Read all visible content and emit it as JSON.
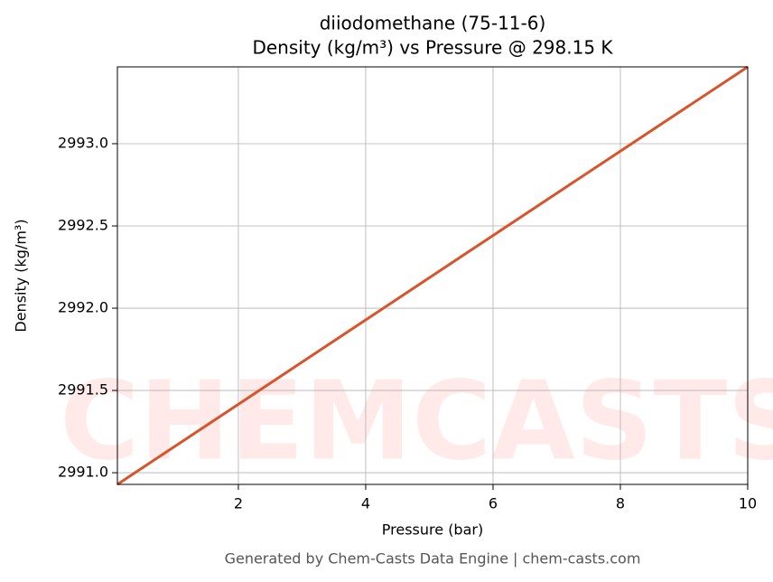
{
  "chart_data": {
    "type": "line",
    "title": "diiodomethane (75-11-6)",
    "subtitle": "Density (kg/m³) vs Pressure @ 298.15 K",
    "x_label": "Pressure (bar)",
    "y_label": "Density (kg/m³)",
    "footer": "Generated by Chem-Casts Data Engine | chem-casts.com",
    "watermark": "CHEMCASTS",
    "x": [
      0.1,
      2,
      4,
      6,
      8,
      10
    ],
    "series": [
      {
        "name": "Density",
        "color": "#d9532b",
        "values": [
          2990.929,
          2991.416,
          2991.929,
          2992.442,
          2992.955,
          2993.467
        ]
      }
    ],
    "xlim": [
      0.1,
      10
    ],
    "xticks": [
      2,
      4,
      6,
      8,
      10
    ],
    "ylim": [
      2990.929,
      2993.467
    ],
    "yticks": [
      {
        "value": 2991,
        "label": "2991.0"
      },
      2991.5,
      {
        "value": 2992,
        "label": "2992.0"
      },
      2992.5,
      {
        "value": 2993,
        "label": "2993.0"
      }
    ],
    "grid": true
  }
}
